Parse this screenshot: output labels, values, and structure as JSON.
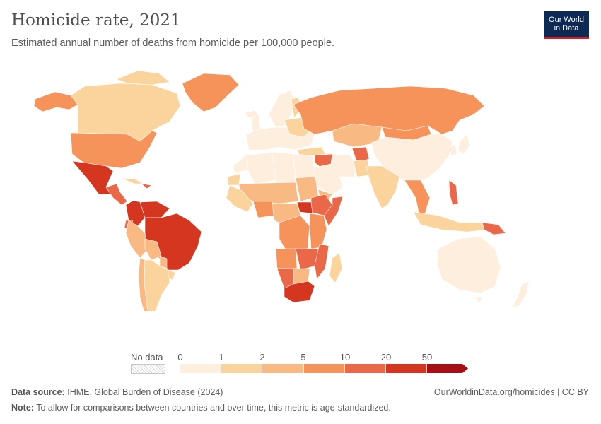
{
  "header": {
    "title": "Homicide rate, 2021",
    "subtitle": "Estimated annual number of deaths from homicide per 100,000 people."
  },
  "logo": {
    "line1": "Our World",
    "line2": "in Data"
  },
  "legend": {
    "no_data_label": "No data",
    "ticks": [
      "0",
      "1",
      "2",
      "5",
      "10",
      "20",
      "50"
    ],
    "colors": [
      "#fdeedd",
      "#fbd39d",
      "#f9b983",
      "#f6935a",
      "#ea6747",
      "#d5361f",
      "#a50f15"
    ]
  },
  "map_data": {
    "metric": "homicide rate per 100,000",
    "year": "2021",
    "bins": [
      {
        "range": "0–1",
        "regions": [
          "Europe",
          "China",
          "Japan",
          "Australia",
          "Algeria",
          "Libya",
          "Egypt",
          "Iran",
          "Saudi Arabia"
        ]
      },
      {
        "range": "1–2",
        "regions": [
          "Canada",
          "India",
          "Western Africa",
          "Indonesia",
          "Argentina"
        ]
      },
      {
        "range": "2–5",
        "regions": [
          "Peru",
          "Chile",
          "Sahel",
          "Kazakhstan",
          "Congo"
        ]
      },
      {
        "range": "5–10",
        "regions": [
          "United States",
          "Russia",
          "Greenland",
          "Mongolia",
          "Angola"
        ]
      },
      {
        "range": "10–20",
        "regions": [
          "Ecuador",
          "Namibia",
          "Philippines",
          "Iraq",
          "Papua New Guinea"
        ]
      },
      {
        "range": "20–50",
        "regions": [
          "Mexico",
          "Brazil",
          "Colombia",
          "Venezuela",
          "South Africa",
          "South Sudan",
          "Lesotho"
        ]
      },
      {
        "range": "50+",
        "regions": []
      }
    ]
  },
  "footer": {
    "source_label": "Data source:",
    "source_text": "IHME, Global Burden of Disease (2024)",
    "url": "OurWorldinData.org/homicides | CC BY",
    "note_label": "Note:",
    "note_text": "To allow for comparisons between countries and over time, this metric is age-standardized."
  }
}
